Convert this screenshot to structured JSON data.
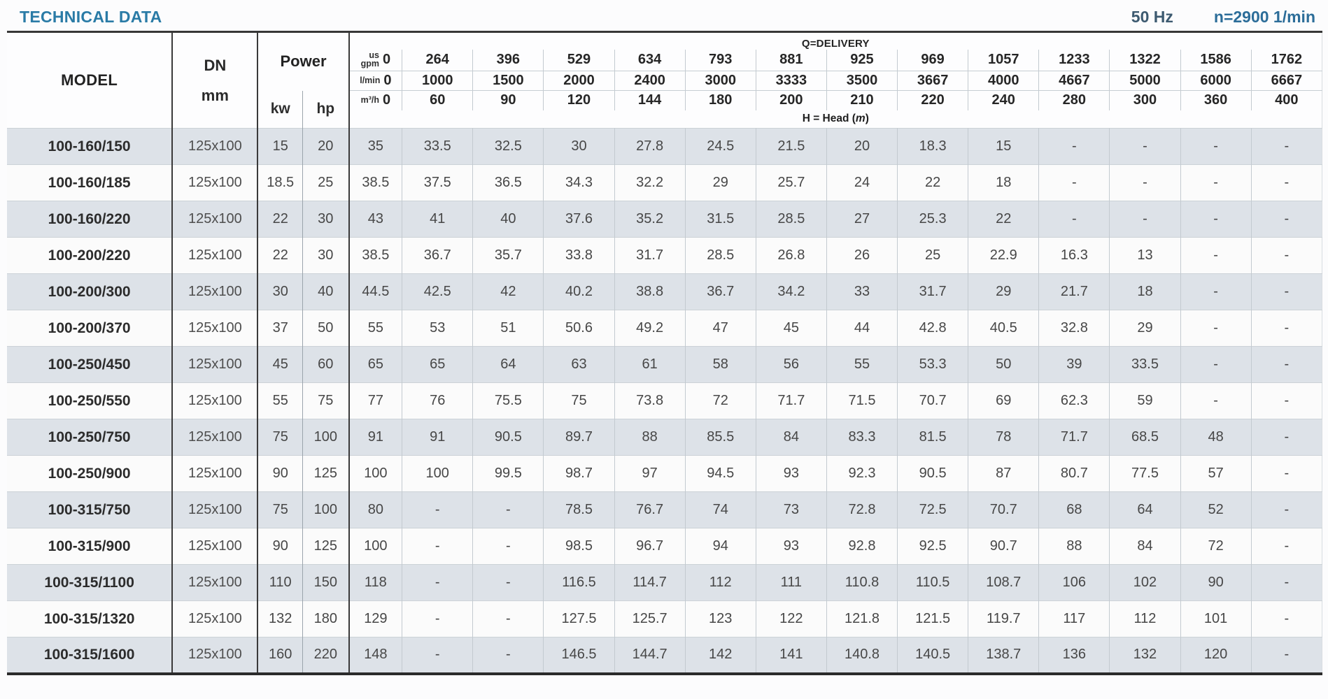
{
  "colors": {
    "title": "#2a7ba6",
    "frequency_text": "#3d5a70",
    "speed_text": "#2c6d99",
    "row_stripe": "#dde2e8",
    "row_white": "#fbfbfb",
    "border_light": "#c3cad0"
  },
  "page": {
    "title": "TECHNICAL DATA",
    "frequency": "50 Hz",
    "speed": "n=2900 1/min"
  },
  "table": {
    "header": {
      "model": "MODEL",
      "dn": "DN",
      "dn_unit": "mm",
      "power": "Power",
      "kw": "kw",
      "hp": "hp",
      "delivery_title": "Q=DELIVERY",
      "units": {
        "gpm_line1": "us",
        "gpm_line2": "gpm",
        "lmin": "l/min",
        "m3h": "m³/h"
      },
      "gpm_values": [
        "0",
        "264",
        "396",
        "529",
        "634",
        "793",
        "881",
        "925",
        "969",
        "1057",
        "1233",
        "1322",
        "1586",
        "1762"
      ],
      "lmin_values": [
        "0",
        "1000",
        "1500",
        "2000",
        "2400",
        "3000",
        "3333",
        "3500",
        "3667",
        "4000",
        "4667",
        "5000",
        "6000",
        "6667"
      ],
      "m3h_values": [
        "0",
        "60",
        "90",
        "120",
        "144",
        "180",
        "200",
        "210",
        "220",
        "240",
        "280",
        "300",
        "360",
        "400"
      ],
      "head_label_prefix": "H = Head (",
      "head_label_unit": "m",
      "head_label_suffix": ")"
    },
    "rows": [
      {
        "model": "100-160/150",
        "dn": "125x100",
        "kw": "15",
        "hp": "20",
        "head": [
          "35",
          "33.5",
          "32.5",
          "30",
          "27.8",
          "24.5",
          "21.5",
          "20",
          "18.3",
          "15",
          "-",
          "-",
          "-",
          "-"
        ]
      },
      {
        "model": "100-160/185",
        "dn": "125x100",
        "kw": "18.5",
        "hp": "25",
        "head": [
          "38.5",
          "37.5",
          "36.5",
          "34.3",
          "32.2",
          "29",
          "25.7",
          "24",
          "22",
          "18",
          "-",
          "-",
          "-",
          "-"
        ]
      },
      {
        "model": "100-160/220",
        "dn": "125x100",
        "kw": "22",
        "hp": "30",
        "head": [
          "43",
          "41",
          "40",
          "37.6",
          "35.2",
          "31.5",
          "28.5",
          "27",
          "25.3",
          "22",
          "-",
          "-",
          "-",
          "-"
        ]
      },
      {
        "model": "100-200/220",
        "dn": "125x100",
        "kw": "22",
        "hp": "30",
        "head": [
          "38.5",
          "36.7",
          "35.7",
          "33.8",
          "31.7",
          "28.5",
          "26.8",
          "26",
          "25",
          "22.9",
          "16.3",
          "13",
          "-",
          "-"
        ]
      },
      {
        "model": "100-200/300",
        "dn": "125x100",
        "kw": "30",
        "hp": "40",
        "head": [
          "44.5",
          "42.5",
          "42",
          "40.2",
          "38.8",
          "36.7",
          "34.2",
          "33",
          "31.7",
          "29",
          "21.7",
          "18",
          "-",
          "-"
        ]
      },
      {
        "model": "100-200/370",
        "dn": "125x100",
        "kw": "37",
        "hp": "50",
        "head": [
          "55",
          "53",
          "51",
          "50.6",
          "49.2",
          "47",
          "45",
          "44",
          "42.8",
          "40.5",
          "32.8",
          "29",
          "-",
          "-"
        ]
      },
      {
        "model": "100-250/450",
        "dn": "125x100",
        "kw": "45",
        "hp": "60",
        "head": [
          "65",
          "65",
          "64",
          "63",
          "61",
          "58",
          "56",
          "55",
          "53.3",
          "50",
          "39",
          "33.5",
          "-",
          "-"
        ]
      },
      {
        "model": "100-250/550",
        "dn": "125x100",
        "kw": "55",
        "hp": "75",
        "head": [
          "77",
          "76",
          "75.5",
          "75",
          "73.8",
          "72",
          "71.7",
          "71.5",
          "70.7",
          "69",
          "62.3",
          "59",
          "-",
          "-"
        ]
      },
      {
        "model": "100-250/750",
        "dn": "125x100",
        "kw": "75",
        "hp": "100",
        "head": [
          "91",
          "91",
          "90.5",
          "89.7",
          "88",
          "85.5",
          "84",
          "83.3",
          "81.5",
          "78",
          "71.7",
          "68.5",
          "48",
          "-"
        ]
      },
      {
        "model": "100-250/900",
        "dn": "125x100",
        "kw": "90",
        "hp": "125",
        "head": [
          "100",
          "100",
          "99.5",
          "98.7",
          "97",
          "94.5",
          "93",
          "92.3",
          "90.5",
          "87",
          "80.7",
          "77.5",
          "57",
          "-"
        ]
      },
      {
        "model": "100-315/750",
        "dn": "125x100",
        "kw": "75",
        "hp": "100",
        "head": [
          "80",
          "-",
          "-",
          "78.5",
          "76.7",
          "74",
          "73",
          "72.8",
          "72.5",
          "70.7",
          "68",
          "64",
          "52",
          "-"
        ]
      },
      {
        "model": "100-315/900",
        "dn": "125x100",
        "kw": "90",
        "hp": "125",
        "head": [
          "100",
          "-",
          "-",
          "98.5",
          "96.7",
          "94",
          "93",
          "92.8",
          "92.5",
          "90.7",
          "88",
          "84",
          "72",
          "-"
        ]
      },
      {
        "model": "100-315/1100",
        "dn": "125x100",
        "kw": "110",
        "hp": "150",
        "head": [
          "118",
          "-",
          "-",
          "116.5",
          "114.7",
          "112",
          "111",
          "110.8",
          "110.5",
          "108.7",
          "106",
          "102",
          "90",
          "-"
        ]
      },
      {
        "model": "100-315/1320",
        "dn": "125x100",
        "kw": "132",
        "hp": "180",
        "head": [
          "129",
          "-",
          "-",
          "127.5",
          "125.7",
          "123",
          "122",
          "121.8",
          "121.5",
          "119.7",
          "117",
          "112",
          "101",
          "-"
        ]
      },
      {
        "model": "100-315/1600",
        "dn": "125x100",
        "kw": "160",
        "hp": "220",
        "head": [
          "148",
          "-",
          "-",
          "146.5",
          "144.7",
          "142",
          "141",
          "140.8",
          "140.5",
          "138.7",
          "136",
          "132",
          "120",
          "-"
        ]
      }
    ]
  }
}
